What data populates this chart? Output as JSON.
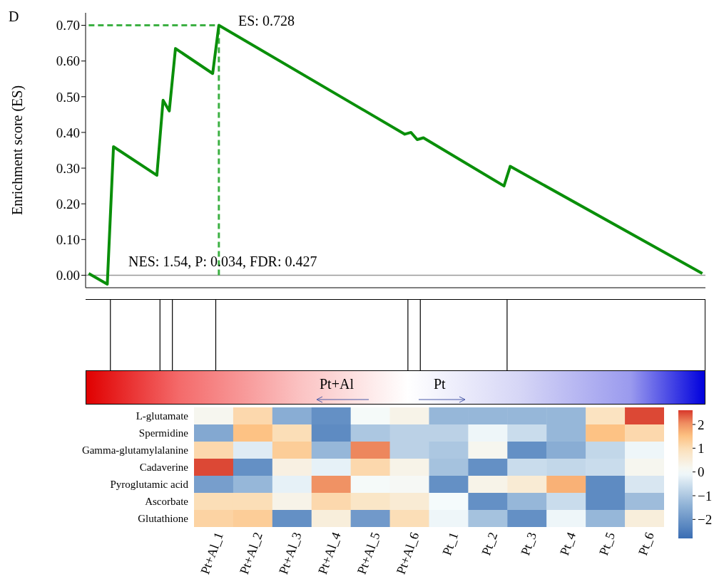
{
  "chart_data": [
    {
      "type": "line",
      "ylabel": "Enrichment score (ES)",
      "annotations": [
        "D",
        "ES: 0.728",
        "NES: 1.54, P: 0.034, FDR: 0.427",
        "Pt+Al",
        "Pt"
      ],
      "categories": [
        null,
        null,
        null,
        null,
        null,
        null,
        null,
        null,
        null,
        null,
        null,
        null,
        null,
        null,
        null,
        null,
        null,
        null,
        null,
        null,
        null,
        null,
        null,
        null,
        null,
        null,
        null,
        null,
        null,
        null,
        null,
        null,
        null,
        null,
        null,
        null,
        null,
        null,
        null,
        null,
        null,
        null,
        null,
        null,
        null,
        null,
        null,
        null,
        null,
        null,
        null,
        null,
        null,
        null,
        null,
        null,
        null,
        null,
        null,
        null,
        null,
        null,
        null,
        null,
        null,
        null,
        null,
        null,
        null,
        null,
        null,
        null,
        null,
        null,
        null,
        null,
        null,
        null,
        null,
        null,
        null,
        null,
        null,
        null,
        null,
        null,
        null,
        null,
        null,
        null,
        null,
        null,
        null,
        null,
        null,
        null,
        null,
        null,
        null,
        null
      ],
      "series": [
        {
          "color": "#0a8f0a",
          "values": [
            0.005,
            null,
            null,
            -0.025,
            0.36,
            null,
            null,
            null,
            null,
            null,
            null,
            0.28,
            0.49,
            0.46,
            0.635,
            null,
            null,
            null,
            null,
            null,
            0.565,
            0.7,
            null,
            null,
            null,
            null,
            null,
            null,
            null,
            null,
            null,
            null,
            null,
            null,
            null,
            null,
            null,
            null,
            null,
            null,
            null,
            null,
            null,
            null,
            null,
            null,
            null,
            null,
            null,
            null,
            null,
            0.395,
            0.4,
            0.38,
            0.385,
            null,
            null,
            null,
            null,
            null,
            null,
            null,
            null,
            null,
            null,
            null,
            null,
            0.25,
            0.305,
            null,
            null,
            null,
            null,
            null,
            null,
            null,
            null,
            null,
            null,
            null,
            null,
            null,
            null,
            null,
            null,
            null,
            null,
            null,
            null,
            null,
            null,
            null,
            null,
            null,
            null,
            null,
            null,
            null,
            null,
            0.005
          ]
        }
      ],
      "ylim": [
        -0.035,
        0.735
      ],
      "yticks": [
        {
          "value": 0,
          "label": "0.00"
        },
        {
          "value": 0.1,
          "label": "0.10"
        },
        {
          "value": 0.2,
          "label": "0.20"
        },
        {
          "value": 0.3,
          "label": "0.30"
        },
        {
          "value": 0.4,
          "label": "0.40"
        },
        {
          "value": 0.5,
          "label": "0.50"
        },
        {
          "value": 0.6,
          "label": "0.60"
        },
        {
          "value": 0.7,
          "label": "0.70"
        }
      ],
      "ref_lines": [
        {
          "axis": "y",
          "value": 0,
          "color": "#999999",
          "line_style": "solid"
        },
        {
          "axis": "y",
          "value": 0.7,
          "color": "#3cb043",
          "line_style": "dashed"
        }
      ]
    },
    {
      "type": "heatmap",
      "categories": [
        "Pt+Al_1",
        "Pt+Al_2",
        "Pt+Al_3",
        "Pt+Al_4",
        "Pt+Al_5",
        "Pt+Al_6",
        "Pt_1",
        "Pt_2",
        "Pt_3",
        "Pt_4",
        "Pt_5",
        "Pt_6"
      ],
      "y_categories": [
        "L-glutamate",
        "Spermidine",
        "Gamma-glutamylalanine",
        "Cadaverine",
        "Pyroglutamic acid",
        "Ascorbate",
        "Glutathione"
      ],
      "cells": [
        [
          0.2,
          1.1,
          -1.5,
          -2.1,
          0.05,
          0.3,
          -1.3,
          -1.3,
          -1.3,
          -1.3,
          0.9,
          2.5
        ],
        [
          -1.6,
          1.5,
          1.0,
          -2.2,
          -1.0,
          -0.8,
          -0.8,
          -0.1,
          -0.6,
          -1.3,
          1.5,
          1.1
        ],
        [
          1.1,
          -0.3,
          1.3,
          -1.3,
          2.1,
          -0.8,
          -1.0,
          0.2,
          -2.1,
          -1.5,
          -0.7,
          -0.1
        ],
        [
          2.5,
          -2.1,
          0.4,
          -0.2,
          1.1,
          0.3,
          -1.1,
          -2.1,
          -0.6,
          -0.7,
          -0.6,
          0.2
        ],
        [
          -1.8,
          -1.3,
          -0.2,
          2.0,
          0.05,
          0.1,
          -2.1,
          0.3,
          0.6,
          1.7,
          -2.2,
          -0.4
        ],
        [
          1.0,
          1.0,
          0.3,
          1.1,
          0.8,
          0.6,
          0.0,
          -2.1,
          -1.3,
          -0.6,
          -2.2,
          -1.2
        ],
        [
          1.2,
          1.3,
          -2.1,
          0.5,
          -1.9,
          1.0,
          -0.1,
          -1.1,
          -2.1,
          -0.1,
          -1.3,
          0.5
        ]
      ],
      "clim": [
        -2.8,
        2.6
      ],
      "cticks": [
        {
          "value": -2,
          "label": "−2"
        },
        {
          "value": -1,
          "label": "−1"
        },
        0,
        1,
        2
      ]
    }
  ]
}
